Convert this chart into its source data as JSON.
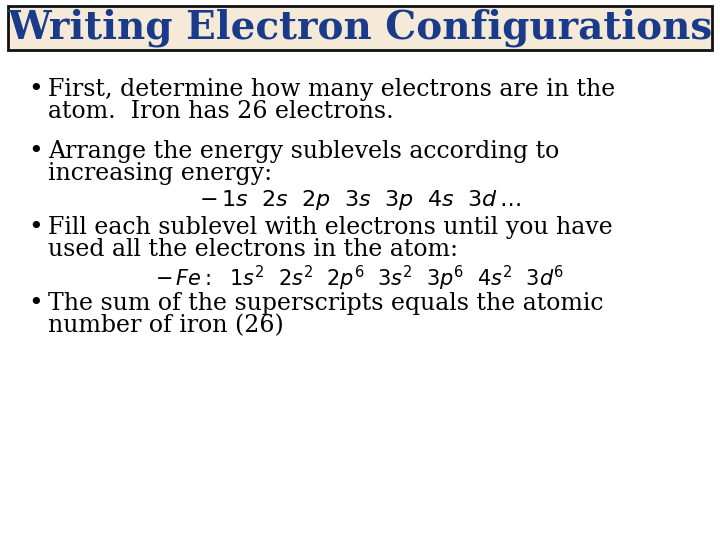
{
  "title": "Writing Electron Configurations",
  "title_color": "#1a3a8a",
  "title_bg": "#f5ead8",
  "title_border": "#111111",
  "bg_color": "#ffffff",
  "bullet_color": "#000000",
  "bullet_size": 17,
  "title_size": 28,
  "bullet1_line1": "First, determine how many electrons are in the",
  "bullet1_line2": "atom.  Iron has 26 electrons.",
  "bullet2_line1": "Arrange the energy sublevels according to",
  "bullet2_line2": "increasing energy:",
  "bullet3_line1": "Fill each sublevel with electrons until you have",
  "bullet3_line2": "used all the electrons in the atom:",
  "bullet4_line1": "The sum of the superscripts equals the atomic",
  "bullet4_line2": "number of iron (26)"
}
